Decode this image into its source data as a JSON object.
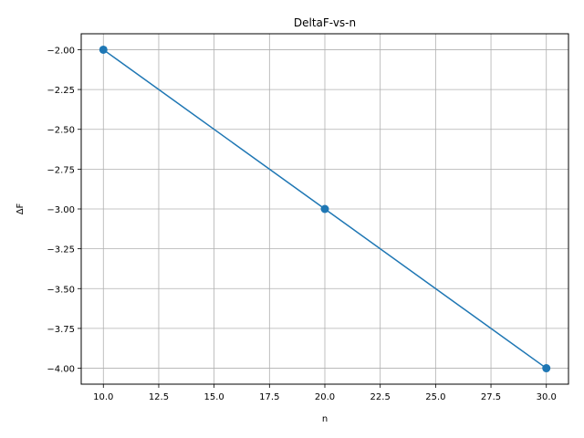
{
  "chart_data": {
    "type": "line",
    "title": "DeltaF-vs-n",
    "xlabel": "n",
    "ylabel": "ΔF",
    "xlim": [
      9.0,
      31.0
    ],
    "ylim": [
      -4.1,
      -1.9
    ],
    "x_ticks": [
      10.0,
      12.5,
      15.0,
      17.5,
      20.0,
      22.5,
      25.0,
      27.5,
      30.0
    ],
    "x_tick_labels": [
      "10.0",
      "12.5",
      "15.0",
      "17.5",
      "20.0",
      "22.5",
      "25.0",
      "27.5",
      "30.0"
    ],
    "y_ticks": [
      -2.0,
      -2.25,
      -2.5,
      -2.75,
      -3.0,
      -3.25,
      -3.5,
      -3.75,
      -4.0
    ],
    "y_tick_labels": [
      "−2.00",
      "−2.25",
      "−2.50",
      "−2.75",
      "−3.00",
      "−3.25",
      "−3.50",
      "−3.75",
      "−4.00"
    ],
    "grid": true,
    "series": [
      {
        "x": [
          10,
          20,
          30
        ],
        "values": [
          -2.0,
          -3.0,
          -4.0
        ],
        "color": "#1f77b4",
        "marker": "circle"
      }
    ]
  }
}
